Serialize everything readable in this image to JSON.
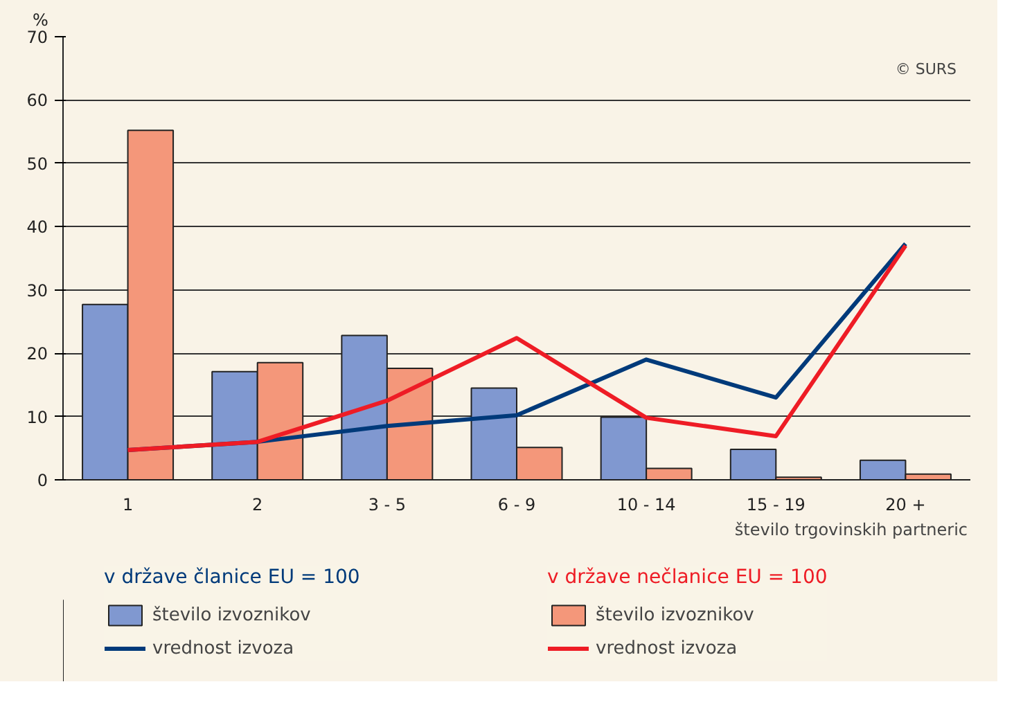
{
  "chart_data": {
    "type": "bar",
    "ylabel": "%",
    "xlabel": "število trgovinskih partneric",
    "categories": [
      "1",
      "2",
      "3 - 5",
      "6 - 9",
      "10 - 14",
      "15 - 19",
      "20 +"
    ],
    "series": [
      {
        "name": "število izvoznikov",
        "color": "#8098d0",
        "values": [
          27.7,
          17.1,
          22.8,
          14.5,
          9.9,
          4.8,
          3.1
        ]
      },
      {
        "name": "število izvoznikov",
        "color": "#f4977a",
        "values": [
          55.2,
          18.5,
          17.6,
          5.1,
          1.8,
          0.4,
          0.9
        ]
      },
      {
        "name": "vrednost izvoza",
        "type": "line",
        "color": "#003a7a",
        "values": [
          4.7,
          6.0,
          8.5,
          10.2,
          19.0,
          13.0,
          37.3
        ]
      },
      {
        "name": "vrednost izvoza",
        "type": "line",
        "color": "#ee1c25",
        "values": [
          4.7,
          6.0,
          12.5,
          22.4,
          9.8,
          6.9,
          37.0
        ]
      }
    ],
    "annotations": [
      "© SURS",
      "v države članice EU = 100",
      "v države nečlanice EU = 100"
    ],
    "ylim": [
      0,
      70
    ],
    "yticks": [
      0,
      10,
      20,
      30,
      40,
      50,
      60,
      70
    ],
    "grid": "y",
    "legend": "bottom"
  }
}
